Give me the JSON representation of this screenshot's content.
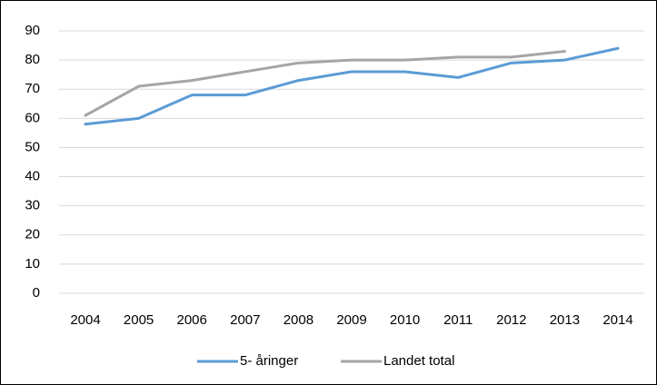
{
  "chart_data": {
    "type": "line",
    "categories": [
      "2004",
      "2005",
      "2006",
      "2007",
      "2008",
      "2009",
      "2010",
      "2011",
      "2012",
      "2013",
      "2014"
    ],
    "series": [
      {
        "name": "5- åringer",
        "color": "#5b9bd5",
        "values": [
          58,
          60,
          68,
          68,
          73,
          76,
          76,
          74,
          79,
          80,
          84
        ]
      },
      {
        "name": "Landet total",
        "color": "#a5a5a5",
        "values": [
          61,
          71,
          73,
          76,
          79,
          80,
          80,
          81,
          81,
          83,
          null
        ]
      }
    ],
    "ylim": [
      0,
      90
    ],
    "yticks": [
      0,
      10,
      20,
      30,
      40,
      50,
      60,
      70,
      80,
      90
    ],
    "grid": true,
    "legend": "bottom"
  }
}
